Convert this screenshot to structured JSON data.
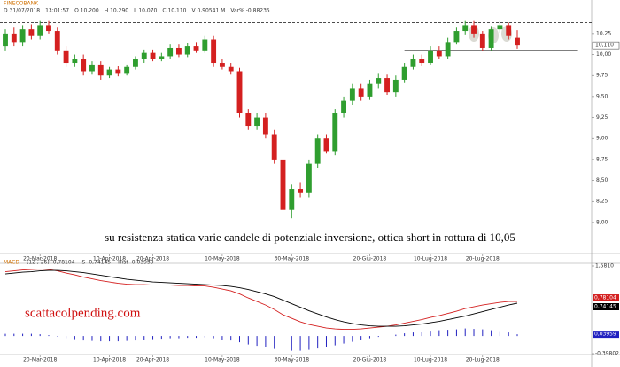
{
  "chart_data": [
    {
      "type": "candlestick",
      "title": "FINECOBANK",
      "header": [
        "D 31/07/2018",
        "13:01:57",
        "O 10,200",
        "H 10,290",
        "L 10,070",
        "C 10,110",
        "V 0,90541 M",
        "Var% -0,88235"
      ],
      "open": [
        10.1,
        10.25,
        10.15,
        10.3,
        10.22,
        10.35,
        10.28,
        10.05,
        9.9,
        9.95,
        9.8,
        9.88,
        9.75,
        9.82,
        9.78,
        9.85,
        9.95,
        10.02,
        9.95,
        9.98,
        10.08,
        10.0,
        10.1,
        10.05,
        10.18,
        9.9,
        9.85,
        9.8,
        9.3,
        9.15,
        9.25,
        9.05,
        8.75,
        8.15,
        8.4,
        8.35,
        8.7,
        9.0,
        8.85,
        9.3,
        9.45,
        9.6,
        9.5,
        9.65,
        9.72,
        9.55,
        9.7,
        9.85,
        9.95,
        9.9,
        10.05,
        9.98,
        10.15,
        10.28,
        10.35,
        10.25,
        10.08,
        10.3,
        10.35,
        10.2
      ],
      "high": [
        10.3,
        10.32,
        10.35,
        10.36,
        10.4,
        10.4,
        10.32,
        10.1,
        10.0,
        10.0,
        9.92,
        9.92,
        9.85,
        9.86,
        9.88,
        9.98,
        10.06,
        10.06,
        10.02,
        10.12,
        10.12,
        10.14,
        10.15,
        10.22,
        10.22,
        9.95,
        9.9,
        9.84,
        9.35,
        9.3,
        9.3,
        9.1,
        8.8,
        8.45,
        8.48,
        8.75,
        9.05,
        9.05,
        9.35,
        9.5,
        9.65,
        9.65,
        9.7,
        9.78,
        9.76,
        9.75,
        9.9,
        10.0,
        10.0,
        10.1,
        10.1,
        10.2,
        10.32,
        10.4,
        10.4,
        10.28,
        10.34,
        10.4,
        10.38,
        10.29
      ],
      "low": [
        10.05,
        10.1,
        10.1,
        10.18,
        10.18,
        10.25,
        10.0,
        9.85,
        9.85,
        9.75,
        9.76,
        9.7,
        9.72,
        9.74,
        9.75,
        9.82,
        9.9,
        9.92,
        9.92,
        9.95,
        9.97,
        9.97,
        10.02,
        10.02,
        9.85,
        9.82,
        9.76,
        9.25,
        9.1,
        9.1,
        9.0,
        8.7,
        8.1,
        8.05,
        8.3,
        8.3,
        8.65,
        8.82,
        8.8,
        9.25,
        9.4,
        9.45,
        9.46,
        9.6,
        9.52,
        9.5,
        9.66,
        9.82,
        9.86,
        9.88,
        9.95,
        9.95,
        10.12,
        10.24,
        10.2,
        10.04,
        10.05,
        10.26,
        10.18,
        10.07
      ],
      "close": [
        10.25,
        10.15,
        10.3,
        10.22,
        10.35,
        10.28,
        10.05,
        9.9,
        9.95,
        9.8,
        9.88,
        9.75,
        9.82,
        9.78,
        9.85,
        9.95,
        10.02,
        9.95,
        9.98,
        10.08,
        10.0,
        10.1,
        10.05,
        10.18,
        9.9,
        9.85,
        9.8,
        9.3,
        9.15,
        9.25,
        9.05,
        8.75,
        8.15,
        8.4,
        8.35,
        8.7,
        9.0,
        8.85,
        9.3,
        9.45,
        9.6,
        9.5,
        9.65,
        9.72,
        9.55,
        9.7,
        9.85,
        9.95,
        9.9,
        10.05,
        9.98,
        10.15,
        10.28,
        10.35,
        10.25,
        10.08,
        10.3,
        10.35,
        10.22,
        10.11
      ],
      "last_label": "10,110",
      "up_color": "#2f9e2f",
      "down_color": "#d42020",
      "annotation": "su resistenza statica varie candele di potenziale inversione, ottica short in rottura di 10,05",
      "level_lines": [
        {
          "value": 10.38,
          "dashed": true
        },
        {
          "value": 10.05,
          "start": 46,
          "end": 66
        }
      ],
      "ylim": [
        7.64,
        10.46
      ],
      "yticks": [
        {
          "value": 8.0,
          "label": "8,00"
        },
        {
          "value": 8.25,
          "label": "8,25"
        },
        {
          "value": 8.5,
          "label": "8,50"
        },
        {
          "value": 8.75,
          "label": "8,75"
        },
        {
          "value": 9.0,
          "label": "9,00"
        },
        {
          "value": 9.25,
          "label": "9,25"
        },
        {
          "value": 9.5,
          "label": "9,50"
        },
        {
          "value": 9.75,
          "label": "9,75"
        },
        {
          "value": 10.0,
          "label": "10,00"
        },
        {
          "value": 10.25,
          "label": "10,25"
        }
      ],
      "xlim": [
        0,
        59
      ],
      "xticks": [
        {
          "value": 4,
          "label": "20-Mar-2018"
        },
        {
          "value": 12,
          "label": "10-Apr-2018"
        },
        {
          "value": 17,
          "label": "20-Apr-2018"
        },
        {
          "value": 25,
          "label": "10-May-2018"
        },
        {
          "value": 33,
          "label": "30-May-2018"
        },
        {
          "value": 42,
          "label": "20-Giu-2018"
        },
        {
          "value": 49,
          "label": "10-Lug-2018"
        },
        {
          "value": 55,
          "label": "20-Lug-2018"
        }
      ],
      "grid": false
    },
    {
      "type": "macd",
      "title": "MACD",
      "watermark": "scattacolpending.com",
      "series": [
        {
          "name": "(12 , 26)",
          "color": "#d42020",
          "last_label": "0,78104",
          "values": [
            1.45,
            1.47,
            1.49,
            1.5,
            1.51,
            1.5,
            1.47,
            1.42,
            1.38,
            1.33,
            1.29,
            1.25,
            1.22,
            1.19,
            1.17,
            1.16,
            1.16,
            1.15,
            1.15,
            1.15,
            1.14,
            1.14,
            1.13,
            1.13,
            1.1,
            1.06,
            1.02,
            0.95,
            0.86,
            0.78,
            0.7,
            0.6,
            0.48,
            0.4,
            0.32,
            0.26,
            0.22,
            0.18,
            0.16,
            0.15,
            0.15,
            0.16,
            0.18,
            0.2,
            0.22,
            0.25,
            0.29,
            0.33,
            0.37,
            0.42,
            0.46,
            0.51,
            0.56,
            0.62,
            0.66,
            0.7,
            0.73,
            0.76,
            0.78,
            0.78104
          ]
        },
        {
          "name": "S",
          "color": "#000000",
          "last_label": "0,74145",
          "values": [
            1.4,
            1.42,
            1.44,
            1.45,
            1.47,
            1.48,
            1.48,
            1.47,
            1.45,
            1.43,
            1.4,
            1.37,
            1.34,
            1.31,
            1.28,
            1.26,
            1.24,
            1.22,
            1.21,
            1.2,
            1.19,
            1.18,
            1.17,
            1.16,
            1.15,
            1.14,
            1.12,
            1.09,
            1.05,
            1.0,
            0.95,
            0.89,
            0.81,
            0.73,
            0.65,
            0.57,
            0.5,
            0.43,
            0.37,
            0.32,
            0.28,
            0.25,
            0.23,
            0.22,
            0.22,
            0.22,
            0.23,
            0.25,
            0.27,
            0.3,
            0.33,
            0.37,
            0.41,
            0.45,
            0.5,
            0.55,
            0.6,
            0.65,
            0.7,
            0.74145
          ]
        },
        {
          "name": "Hist",
          "color": "#2020c0",
          "last_label": "0,03959",
          "values": [
            0.05,
            0.05,
            0.05,
            0.05,
            0.04,
            0.02,
            -0.01,
            -0.05,
            -0.07,
            -0.1,
            -0.11,
            -0.12,
            -0.12,
            -0.12,
            -0.11,
            -0.1,
            -0.08,
            -0.07,
            -0.06,
            -0.05,
            -0.05,
            -0.04,
            -0.04,
            -0.03,
            -0.05,
            -0.08,
            -0.1,
            -0.14,
            -0.19,
            -0.22,
            -0.25,
            -0.29,
            -0.33,
            -0.33,
            -0.33,
            -0.31,
            -0.28,
            -0.25,
            -0.21,
            -0.17,
            -0.13,
            -0.09,
            -0.05,
            -0.02,
            0.0,
            0.03,
            0.06,
            0.08,
            0.1,
            0.12,
            0.13,
            0.14,
            0.15,
            0.17,
            0.16,
            0.15,
            0.13,
            0.11,
            0.08,
            0.03959
          ]
        }
      ],
      "ylim": [
        -0.39802,
        1.581
      ],
      "yticks": [
        {
          "value": -0.39802,
          "label": "-0,39802"
        },
        {
          "value": 1.581,
          "label": "1,5810"
        }
      ],
      "xlim": [
        0,
        59
      ],
      "xticks": [
        {
          "value": 4,
          "label": "20-Mar-2018"
        },
        {
          "value": 12,
          "label": "10-Apr-2018"
        },
        {
          "value": 17,
          "label": "20-Apr-2018"
        },
        {
          "value": 25,
          "label": "10-May-2018"
        },
        {
          "value": 33,
          "label": "30-May-2018"
        },
        {
          "value": 42,
          "label": "20-Giu-2018"
        },
        {
          "value": 49,
          "label": "10-Lug-2018"
        },
        {
          "value": 55,
          "label": "20-Lug-2018"
        }
      ]
    }
  ]
}
